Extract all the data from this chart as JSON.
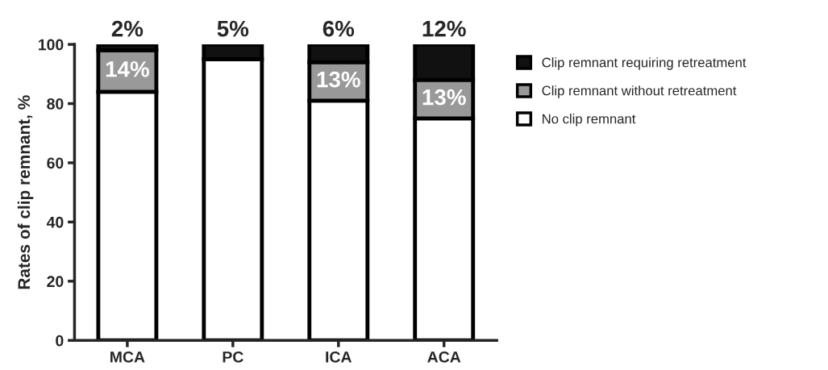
{
  "chart_data": {
    "type": "bar",
    "stacked": true,
    "ylabel": "Rates of clip remnant, %",
    "categories": [
      "MCA",
      "PC",
      "ICA",
      "ACA"
    ],
    "series": [
      {
        "name": "No clip remnant",
        "color": "#ffffff",
        "values": [
          84,
          95,
          81,
          75
        ]
      },
      {
        "name": "Clip remnant without retreatment",
        "color": "#999999",
        "values": [
          14,
          0,
          13,
          13
        ],
        "value_labels": [
          "14%",
          null,
          "13%",
          "13%"
        ]
      },
      {
        "name": "Clip remnant requiring retreatment",
        "color": "#111111",
        "values": [
          2,
          5,
          6,
          12
        ],
        "value_labels": [
          "2%",
          "5%",
          "6%",
          "12%"
        ]
      }
    ],
    "ylim": [
      0,
      100
    ],
    "yticks": [
      0,
      20,
      40,
      60,
      80,
      100
    ],
    "grid": false,
    "legend": "right"
  }
}
